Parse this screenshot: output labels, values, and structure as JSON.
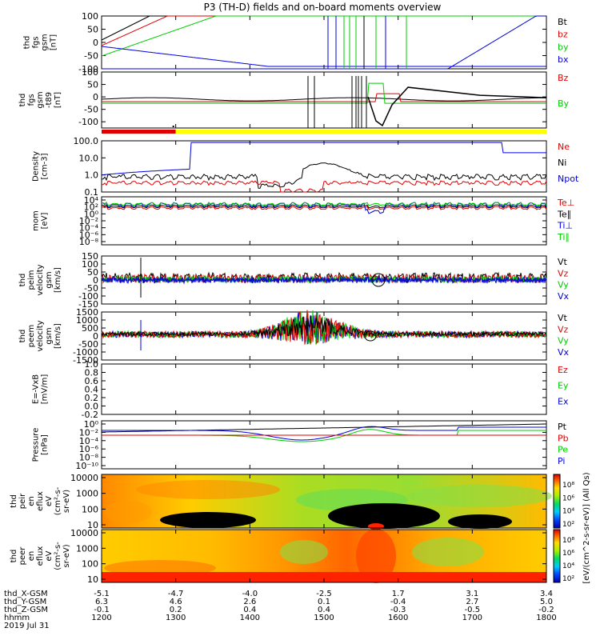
{
  "title": "P3 (TH-D) fields and on-board moments overview",
  "colors": {
    "black": "#000000",
    "red": "#e00000",
    "green": "#00cc00",
    "blue": "#0000dd",
    "yellow": "#ffff00"
  },
  "chart_data": [
    {
      "type": "line",
      "panel": "fgs",
      "ylabel": [
        "thd",
        "fgs",
        "gsm",
        "[nT]"
      ],
      "ylim": [
        -100,
        100
      ],
      "yticks": [
        [
          "100",
          100
        ],
        [
          "50",
          50
        ],
        [
          "0",
          0
        ],
        [
          "-50",
          -50
        ],
        [
          "-100",
          -100
        ]
      ],
      "series": [
        {
          "name": "Bt",
          "color": "#000000"
        },
        {
          "name": "bz",
          "color": "#e00000"
        },
        {
          "name": "by",
          "color": "#00cc00"
        },
        {
          "name": "bx",
          "color": "#0000dd"
        }
      ]
    },
    {
      "type": "line",
      "panel": "fgs-t89",
      "ylabel": [
        "thd",
        "fgs",
        "gsm",
        "-t89",
        "[nT]"
      ],
      "ylim": [
        -125,
        100
      ],
      "yticks": [
        [
          "100",
          100
        ],
        [
          "50",
          50
        ],
        [
          "0",
          0
        ],
        [
          "-50",
          -50
        ],
        [
          "-100",
          -100
        ]
      ],
      "series": [
        {
          "name": "Bz",
          "color": "#e00000"
        },
        {
          "name": "By",
          "color": "#00cc00"
        }
      ]
    },
    {
      "type": "line",
      "panel": "density",
      "ylabel": [
        "Density",
        "[cm-3]"
      ],
      "ylim": [
        0.1,
        100
      ],
      "log": true,
      "yticks": [
        [
          "100.0",
          100
        ],
        [
          "10.0",
          10
        ],
        [
          "1.0",
          1
        ],
        [
          "0.1",
          0.1
        ]
      ],
      "series": [
        {
          "name": "Ne",
          "color": "#e00000"
        },
        {
          "name": "Ni",
          "color": "#000000"
        },
        {
          "name": "Npot",
          "color": "#0000dd"
        }
      ]
    },
    {
      "type": "line",
      "panel": "temperature",
      "ylabel": [
        "mom",
        "[eV]"
      ],
      "yticks": [
        [
          "10⁴",
          10000
        ],
        [
          "10²",
          100
        ],
        [
          "10⁰",
          1
        ],
        [
          "10⁻²",
          0.01
        ],
        [
          "10⁻⁴",
          0.0001
        ],
        [
          "10⁻⁶",
          1e-06
        ],
        [
          "10⁻⁸",
          1e-08
        ]
      ],
      "series": [
        {
          "name": "Te⊥",
          "color": "#e00000"
        },
        {
          "name": "Te∥",
          "color": "#000000"
        },
        {
          "name": "Ti⊥",
          "color": "#0000dd"
        },
        {
          "name": "Ti∥",
          "color": "#00cc00"
        }
      ]
    },
    {
      "type": "line",
      "panel": "peim-velocity",
      "ylabel": [
        "thd",
        "peim",
        "velocity",
        "gsm",
        "[km/s]"
      ],
      "ylim": [
        -150,
        150
      ],
      "yticks": [
        [
          "150",
          150
        ],
        [
          "100",
          100
        ],
        [
          "50",
          50
        ],
        [
          "0",
          0
        ],
        [
          "-50",
          -50
        ],
        [
          "-100",
          -100
        ],
        [
          "-150",
          -150
        ]
      ],
      "series": [
        {
          "name": "Vt",
          "color": "#000000"
        },
        {
          "name": "Vz",
          "color": "#e00000"
        },
        {
          "name": "Vy",
          "color": "#00cc00"
        },
        {
          "name": "Vx",
          "color": "#0000dd"
        }
      ]
    },
    {
      "type": "line",
      "panel": "peem-velocity",
      "ylabel": [
        "thd",
        "peem",
        "velocity",
        "gsm",
        "[km/s]"
      ],
      "ylim": [
        -1500,
        1500
      ],
      "yticks": [
        [
          "1500",
          1500
        ],
        [
          "1000",
          1000
        ],
        [
          "500",
          500
        ],
        [
          "0",
          0
        ],
        [
          "-500",
          -500
        ],
        [
          "-1000",
          -1000
        ],
        [
          "-1500",
          -1500
        ]
      ],
      "series": [
        {
          "name": "Vt",
          "color": "#000000"
        },
        {
          "name": "Vz",
          "color": "#e00000"
        },
        {
          "name": "Vy",
          "color": "#00cc00"
        },
        {
          "name": "Vx",
          "color": "#0000dd"
        }
      ]
    },
    {
      "type": "line",
      "panel": "efield",
      "ylabel": [
        "E=-VxB",
        "[mV/m]"
      ],
      "ylim": [
        -0.2,
        1.0
      ],
      "yticks": [
        [
          "1.0",
          1.0
        ],
        [
          "0.8",
          0.8
        ],
        [
          "0.6",
          0.6
        ],
        [
          "0.4",
          0.4
        ],
        [
          "0.2",
          0.2
        ],
        [
          "0.0",
          0.0
        ],
        [
          "-0.2",
          -0.2
        ]
      ],
      "series": [
        {
          "name": "Ez",
          "color": "#e00000"
        },
        {
          "name": "Ey",
          "color": "#00cc00"
        },
        {
          "name": "Ex",
          "color": "#0000dd"
        }
      ]
    },
    {
      "type": "line",
      "panel": "pressure",
      "ylabel": [
        "Pressure",
        "[nPa]"
      ],
      "log": true,
      "yticks": [
        [
          "10⁰",
          1
        ],
        [
          "10⁻²",
          0.01
        ],
        [
          "10⁻⁴",
          0.0001
        ],
        [
          "10⁻⁶",
          1e-06
        ],
        [
          "10⁻⁸",
          1e-08
        ],
        [
          "10⁻¹⁰",
          1e-10
        ]
      ],
      "series": [
        {
          "name": "Pt",
          "color": "#000000"
        },
        {
          "name": "Pb",
          "color": "#e00000"
        },
        {
          "name": "Pe",
          "color": "#00cc00"
        },
        {
          "name": "Pi",
          "color": "#0000dd"
        }
      ]
    },
    {
      "type": "heatmap",
      "panel": "peir-eflux",
      "ylabel": [
        "thd",
        "peir",
        "en",
        "eflux",
        "eV",
        "(cm²-s-",
        "sr-eV)"
      ],
      "yticks": [
        [
          "10000",
          10000
        ],
        [
          "1000",
          1000
        ],
        [
          "100",
          100
        ],
        [
          "10",
          10
        ]
      ]
    },
    {
      "type": "heatmap",
      "panel": "peer-eflux",
      "ylabel": [
        "thd",
        "peer",
        "en",
        "eflux",
        "eV",
        "(cm²-s-",
        "sr-eV)"
      ],
      "yticks": [
        [
          "10000",
          10000
        ],
        [
          "1000",
          1000
        ],
        [
          "100",
          100
        ],
        [
          "10",
          10
        ]
      ]
    }
  ],
  "colorbar": {
    "label": "[eV/(cm^2-s-sr-eV)] (All Qs)",
    "ticks": [
      "10⁸",
      "10⁶",
      "10⁴",
      "10²"
    ],
    "ticks2": [
      "10⁸",
      "10⁶",
      "10⁴",
      "10²"
    ]
  },
  "x_axis": {
    "time_range": [
      1200,
      1800
    ],
    "rows": [
      {
        "label": "thd_X-GSM",
        "values": [
          "-5.1",
          "-4.7",
          "-4.0",
          "-2.5",
          "1.7",
          "3.1",
          "3.4"
        ]
      },
      {
        "label": "thd_Y-GSM",
        "values": [
          "6.3",
          "4.6",
          "2.6",
          "0.1",
          "-0.4",
          "2.7",
          "5.0"
        ]
      },
      {
        "label": "thd_Z-GSM",
        "values": [
          "-0.1",
          "0.2",
          "0.4",
          "0.4",
          "-0.3",
          "-0.5",
          "-0.2"
        ]
      },
      {
        "label": "hhmm",
        "values": [
          "1200",
          "1300",
          "1400",
          "1500",
          "1600",
          "1700",
          "1800"
        ]
      }
    ],
    "date": "2019 Jul 31"
  },
  "mode_bar": {
    "red_end_time": 1300,
    "black_mark_time": 1300
  }
}
